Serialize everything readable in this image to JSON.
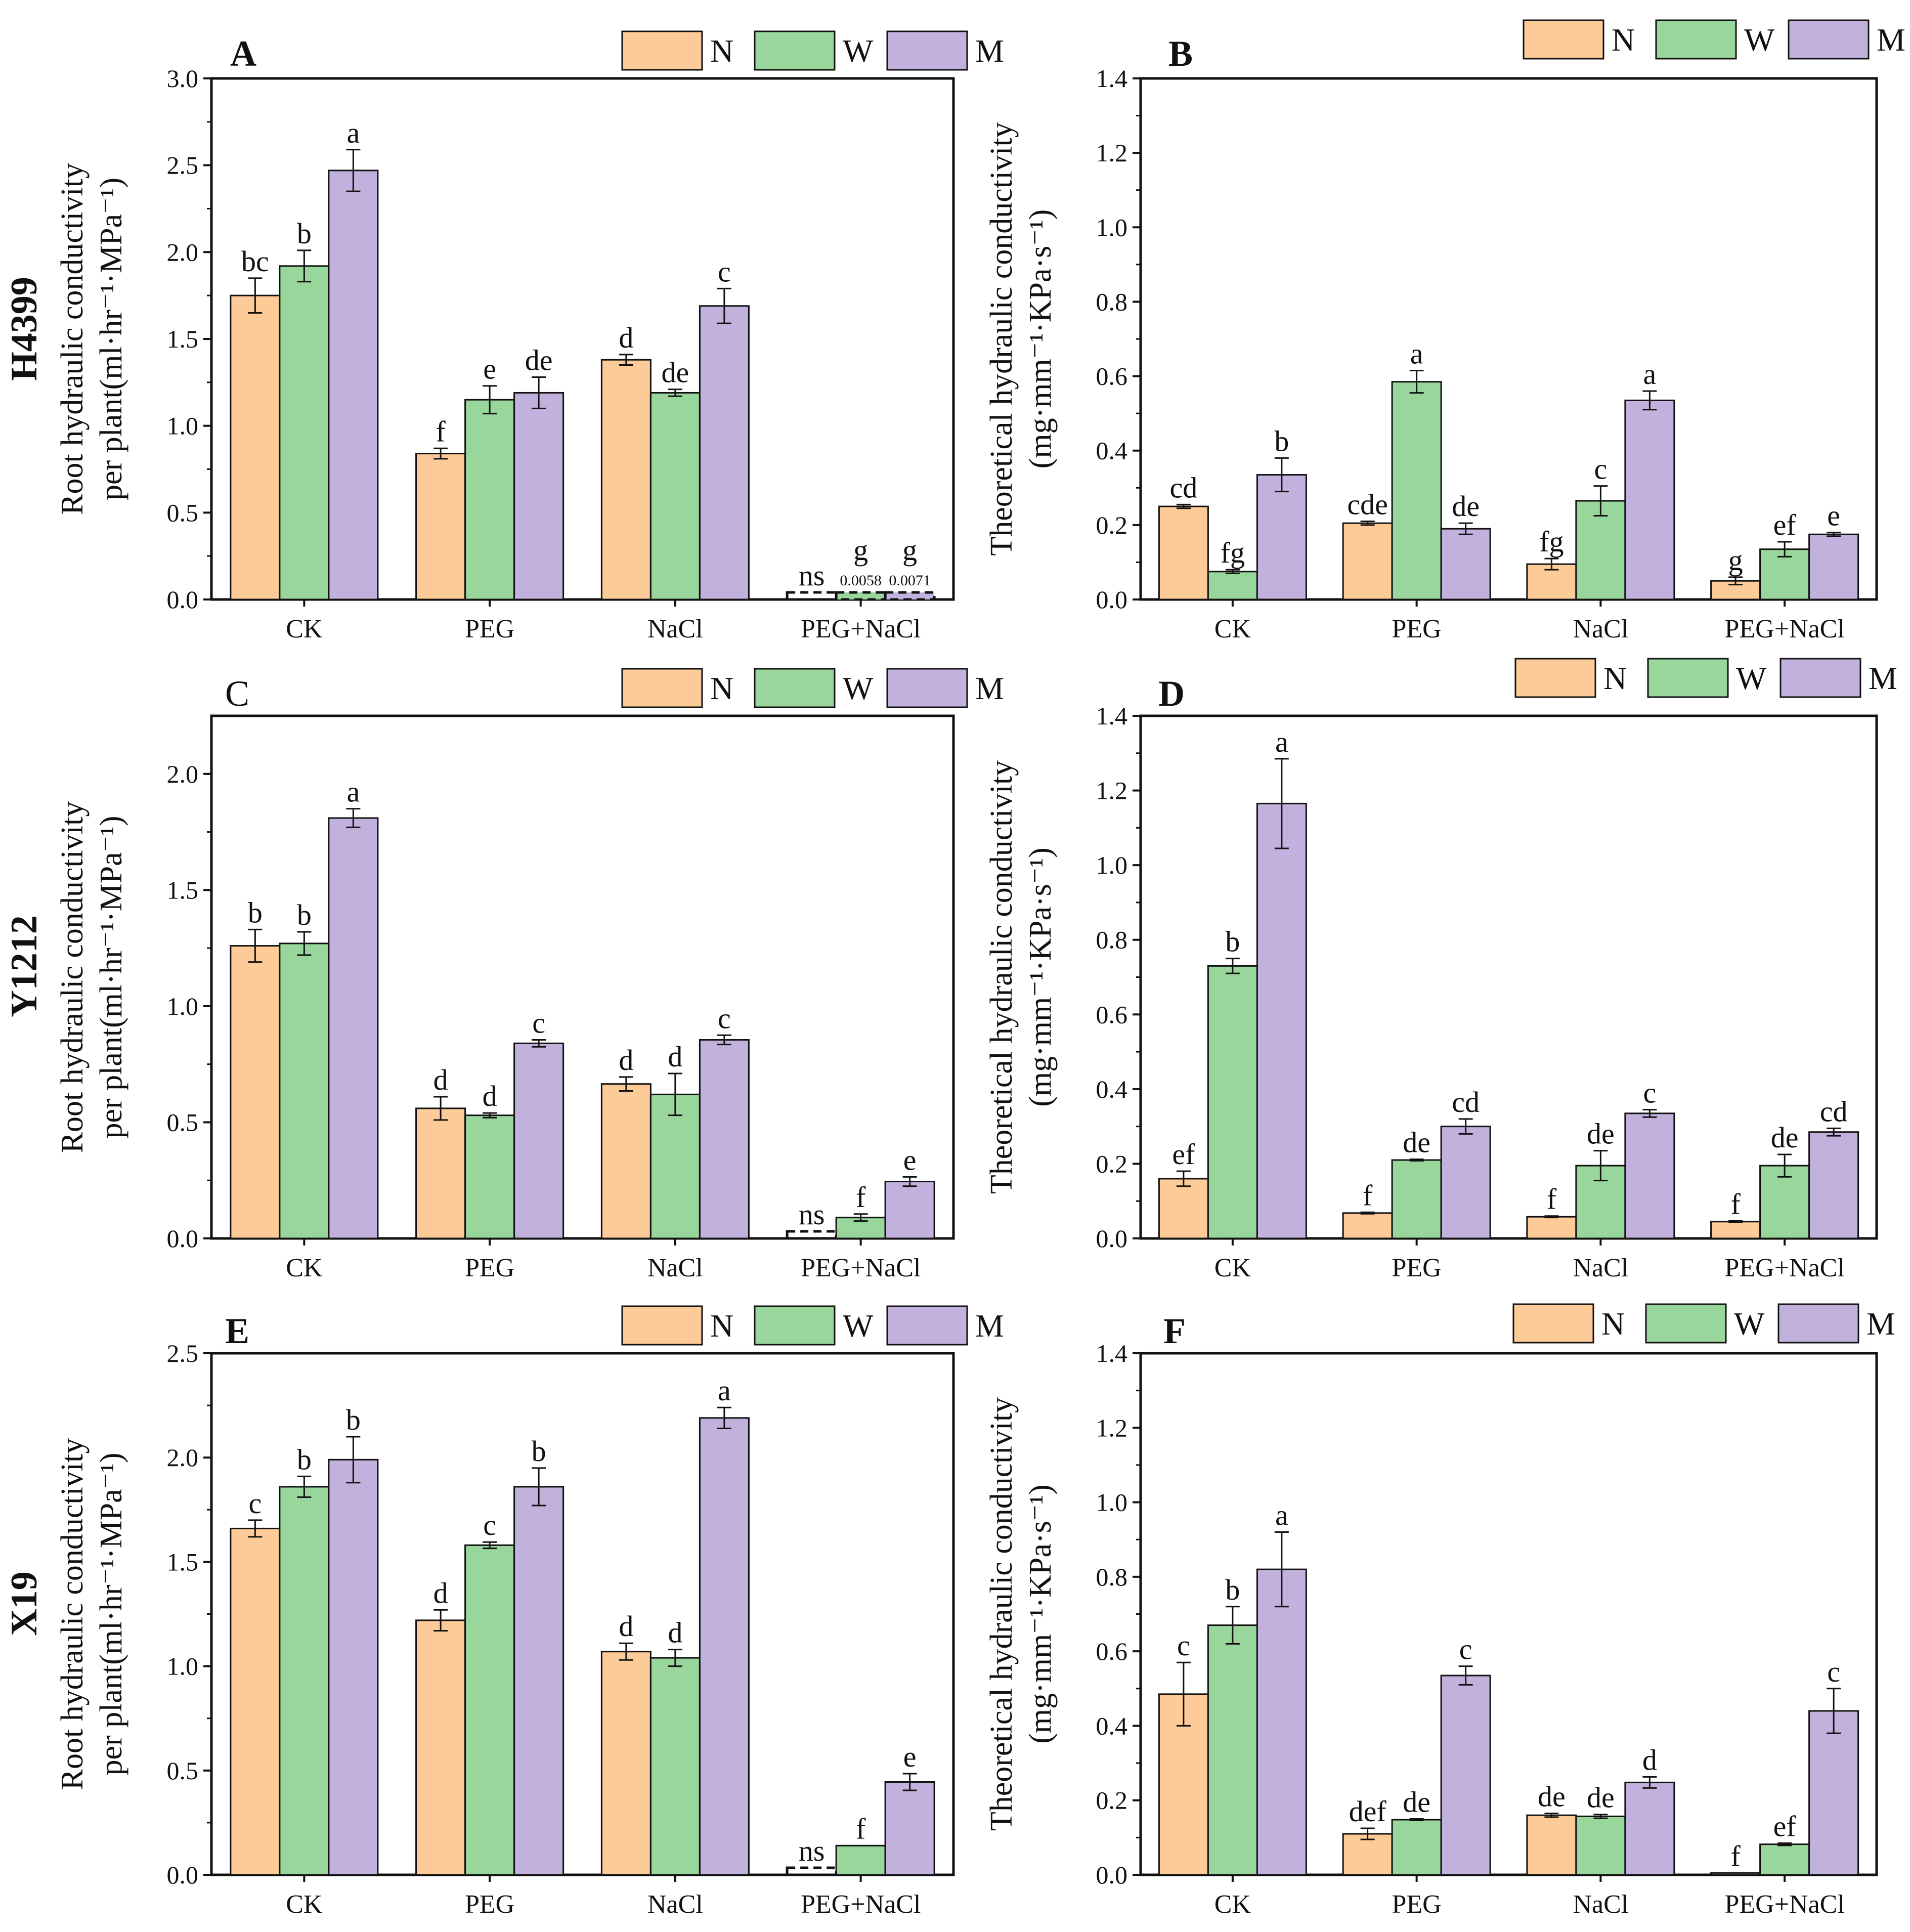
{
  "figure": {
    "rows": [
      {
        "title": "H4399",
        "panels": [
          "A",
          "B"
        ]
      },
      {
        "title": "Y1212",
        "panels": [
          "C",
          "D"
        ]
      },
      {
        "title": "X19",
        "panels": [
          "E",
          "F"
        ]
      }
    ],
    "legend": [
      {
        "key": "N",
        "color": "#fdcb97"
      },
      {
        "key": "W",
        "color": "#98d69b"
      },
      {
        "key": "M",
        "color": "#c2b1dc"
      }
    ],
    "ylabel_left": [
      "Root hydraulic conductivity",
      "per plant(ml·hr⁻¹·MPa⁻¹)"
    ],
    "ylabel_right": [
      "Theoretical hydraulic conductivity",
      "(mg·mm⁻¹·KPa·s⁻¹)"
    ]
  },
  "chart_data": [
    {
      "panel": "A",
      "letter_bold": true,
      "type": "bar",
      "title": "",
      "ylabel": "Root hydraulic conductivity per plant(ml·hr⁻¹·MPa⁻¹)",
      "categories": [
        "CK",
        "PEG",
        "NaCl",
        "PEG+NaCl"
      ],
      "ylim": [
        0,
        3.0
      ],
      "yticks": [
        0.0,
        0.5,
        1.0,
        1.5,
        2.0,
        2.5,
        3.0
      ],
      "tick_decimals": 1,
      "series": [
        {
          "name": "N",
          "values": [
            1.75,
            0.84,
            1.38,
            0.004
          ],
          "errors": [
            0.1,
            0.03,
            0.03,
            0
          ],
          "letters": [
            "bc",
            "f",
            "d",
            "ns"
          ],
          "dashed": [
            false,
            false,
            false,
            true
          ]
        },
        {
          "name": "W",
          "values": [
            1.92,
            1.15,
            1.19,
            0.006
          ],
          "errors": [
            0.09,
            0.08,
            0.02,
            0
          ],
          "letters": [
            "b",
            "e",
            "de",
            "g"
          ],
          "dashed": [
            false,
            false,
            false,
            true
          ],
          "value_notes": [
            "",
            "",
            "",
            "0.0058"
          ]
        },
        {
          "name": "M",
          "values": [
            2.47,
            1.19,
            1.69,
            0.007
          ],
          "errors": [
            0.12,
            0.09,
            0.1,
            0
          ],
          "letters": [
            "a",
            "de",
            "c",
            "g"
          ],
          "dashed": [
            false,
            false,
            false,
            true
          ],
          "value_notes": [
            "",
            "",
            "",
            "0.0071"
          ]
        }
      ]
    },
    {
      "panel": "B",
      "letter_bold": true,
      "type": "bar",
      "title": "",
      "ylabel": "Theoretical hydraulic conductivity (mg·mm⁻¹·KPa·s⁻¹)",
      "categories": [
        "CK",
        "PEG",
        "NaCl",
        "PEG+NaCl"
      ],
      "ylim": [
        0,
        1.4
      ],
      "yticks": [
        0.0,
        0.2,
        0.4,
        0.6,
        0.8,
        1.0,
        1.2,
        1.4
      ],
      "tick_decimals": 1,
      "series": [
        {
          "name": "N",
          "values": [
            0.25,
            0.205,
            0.095,
            0.05
          ],
          "errors": [
            0.005,
            0.005,
            0.015,
            0.01
          ],
          "letters": [
            "cd",
            "cde",
            "fg",
            "g"
          ]
        },
        {
          "name": "W",
          "values": [
            0.075,
            0.585,
            0.265,
            0.135
          ],
          "errors": [
            0.005,
            0.03,
            0.04,
            0.02
          ],
          "letters": [
            "fg",
            "a",
            "c",
            "ef"
          ]
        },
        {
          "name": "M",
          "values": [
            0.335,
            0.19,
            0.535,
            0.175
          ],
          "errors": [
            0.045,
            0.015,
            0.025,
            0.005
          ],
          "letters": [
            "b",
            "de",
            "a",
            "e"
          ]
        }
      ]
    },
    {
      "panel": "C",
      "letter_bold": false,
      "type": "bar",
      "title": "",
      "ylabel": "Root hydraulic conductivity per plant(ml·hr⁻¹·MPa⁻¹)",
      "categories": [
        "CK",
        "PEG",
        "NaCl",
        "PEG+NaCl"
      ],
      "ylim": [
        0,
        2.25
      ],
      "yticks": [
        0.0,
        0.5,
        1.0,
        1.5,
        2.0
      ],
      "tick_decimals": 1,
      "series": [
        {
          "name": "N",
          "values": [
            1.26,
            0.56,
            0.665,
            0.005
          ],
          "errors": [
            0.07,
            0.05,
            0.03,
            0
          ],
          "letters": [
            "b",
            "d",
            "d",
            "ns"
          ],
          "dashed": [
            false,
            false,
            false,
            true
          ]
        },
        {
          "name": "W",
          "values": [
            1.27,
            0.53,
            0.62,
            0.09
          ],
          "errors": [
            0.05,
            0.01,
            0.09,
            0.015
          ],
          "letters": [
            "b",
            "d",
            "d",
            "f"
          ]
        },
        {
          "name": "M",
          "values": [
            1.81,
            0.84,
            0.855,
            0.245
          ],
          "errors": [
            0.04,
            0.015,
            0.02,
            0.02
          ],
          "letters": [
            "a",
            "c",
            "c",
            "e"
          ]
        }
      ]
    },
    {
      "panel": "D",
      "letter_bold": true,
      "type": "bar",
      "title": "",
      "ylabel": "Theoretical hydraulic conductivity (mg·mm⁻¹·KPa·s⁻¹)",
      "categories": [
        "CK",
        "PEG",
        "NaCl",
        "PEG+NaCl"
      ],
      "ylim": [
        0,
        1.4
      ],
      "yticks": [
        0.0,
        0.2,
        0.4,
        0.6,
        0.8,
        1.0,
        1.2,
        1.4
      ],
      "tick_decimals": 1,
      "series": [
        {
          "name": "N",
          "values": [
            0.16,
            0.068,
            0.058,
            0.045
          ],
          "errors": [
            0.02,
            0.002,
            0.002,
            0.002
          ],
          "letters": [
            "ef",
            "f",
            "f",
            "f"
          ]
        },
        {
          "name": "W",
          "values": [
            0.73,
            0.21,
            0.195,
            0.195
          ],
          "errors": [
            0.02,
            0.002,
            0.04,
            0.03
          ],
          "letters": [
            "b",
            "de",
            "de",
            "de"
          ]
        },
        {
          "name": "M",
          "values": [
            1.165,
            0.3,
            0.335,
            0.285
          ],
          "errors": [
            0.12,
            0.02,
            0.01,
            0.01
          ],
          "letters": [
            "a",
            "cd",
            "c",
            "cd"
          ]
        }
      ]
    },
    {
      "panel": "E",
      "letter_bold": true,
      "type": "bar",
      "title": "",
      "ylabel": "Root hydraulic conductivity per plant(ml·hr⁻¹·MPa⁻¹)",
      "categories": [
        "CK",
        "PEG",
        "NaCl",
        "PEG+NaCl"
      ],
      "ylim": [
        0,
        2.5
      ],
      "yticks": [
        0.0,
        0.5,
        1.0,
        1.5,
        2.0,
        2.5
      ],
      "tick_decimals": 1,
      "series": [
        {
          "name": "N",
          "values": [
            1.66,
            1.22,
            1.07,
            0.003
          ],
          "errors": [
            0.04,
            0.05,
            0.04,
            0
          ],
          "letters": [
            "c",
            "d",
            "d",
            "ns"
          ],
          "dashed": [
            false,
            false,
            false,
            true
          ]
        },
        {
          "name": "W",
          "values": [
            1.86,
            1.58,
            1.04,
            0.14
          ],
          "errors": [
            0.05,
            0.015,
            0.04,
            0
          ],
          "letters": [
            "b",
            "c",
            "d",
            "f"
          ]
        },
        {
          "name": "M",
          "values": [
            1.99,
            1.86,
            2.19,
            0.445
          ],
          "errors": [
            0.11,
            0.09,
            0.05,
            0.04
          ],
          "letters": [
            "b",
            "b",
            "a",
            "e"
          ]
        }
      ]
    },
    {
      "panel": "F",
      "letter_bold": true,
      "type": "bar",
      "title": "",
      "ylabel": "Theoretical hydraulic conductivity (mg·mm⁻¹·KPa·s⁻¹)",
      "categories": [
        "CK",
        "PEG",
        "NaCl",
        "PEG+NaCl"
      ],
      "ylim": [
        0,
        1.4
      ],
      "yticks": [
        0.0,
        0.2,
        0.4,
        0.6,
        0.8,
        1.0,
        1.2,
        1.4
      ],
      "tick_decimals": 1,
      "series": [
        {
          "name": "N",
          "values": [
            0.485,
            0.11,
            0.16,
            0.005
          ],
          "errors": [
            0.085,
            0.015,
            0.005,
            0
          ],
          "letters": [
            "c",
            "def",
            "de",
            "f"
          ]
        },
        {
          "name": "W",
          "values": [
            0.67,
            0.148,
            0.157,
            0.082
          ],
          "errors": [
            0.05,
            0.002,
            0.005,
            0.003
          ],
          "letters": [
            "b",
            "de",
            "de",
            "ef"
          ]
        },
        {
          "name": "M",
          "values": [
            0.82,
            0.535,
            0.248,
            0.44
          ],
          "errors": [
            0.1,
            0.025,
            0.015,
            0.06
          ],
          "letters": [
            "a",
            "c",
            "d",
            "c"
          ]
        }
      ]
    }
  ]
}
